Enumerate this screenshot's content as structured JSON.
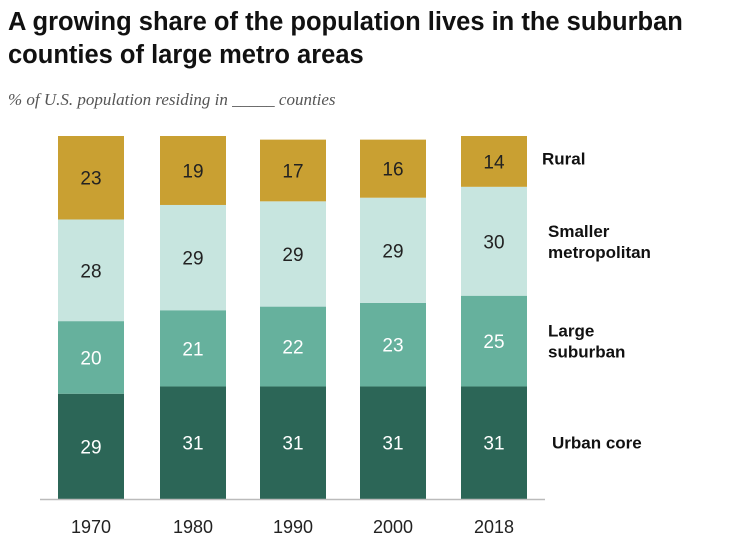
{
  "title": "A growing share of the population lives in the suburban counties of large metro areas",
  "subtitle": "% of U.S. population residing in _____ counties",
  "colors": {
    "rural": "#C9A032",
    "smaller_metropolitan": "#C7E5DF",
    "large_suburban": "#66B19D",
    "urban_core": "#2C6657",
    "axis": "#BBBBBB"
  },
  "chart_data": {
    "type": "bar",
    "stacked": true,
    "orientation": "vertical",
    "categories": [
      "1970",
      "1980",
      "1990",
      "2000",
      "2018"
    ],
    "series": [
      {
        "name": "Urban core",
        "values": [
          29,
          31,
          31,
          31,
          31
        ]
      },
      {
        "name": "Large suburban",
        "values": [
          20,
          21,
          22,
          23,
          25
        ]
      },
      {
        "name": "Smaller metropolitan",
        "values": [
          28,
          29,
          29,
          29,
          30
        ]
      },
      {
        "name": "Rural",
        "values": [
          23,
          19,
          17,
          16,
          14
        ]
      }
    ],
    "legend_labels": [
      [
        "Rural"
      ],
      [
        "Smaller",
        "metropolitan"
      ],
      [
        "Large",
        "suburban"
      ],
      [
        "Urban core"
      ]
    ],
    "ylim": [
      0,
      100
    ],
    "legend_position": "right",
    "grid": false,
    "xlabel": "",
    "ylabel": ""
  }
}
